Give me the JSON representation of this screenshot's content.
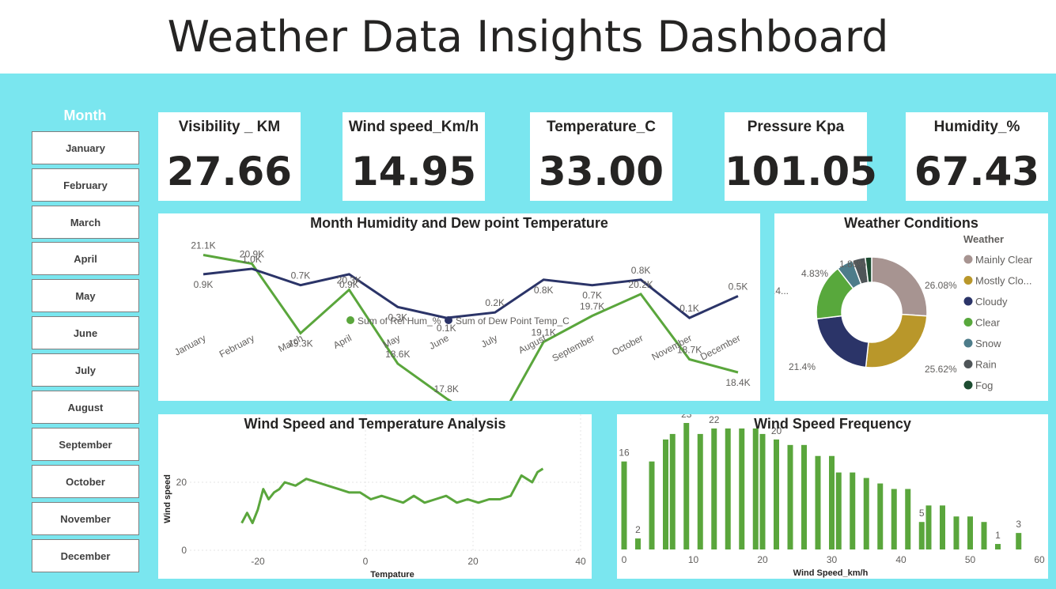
{
  "title": "Weather Data Insights Dashboard",
  "slicer": {
    "title": "Month",
    "items": [
      "January",
      "February",
      "March",
      "April",
      "May",
      "June",
      "July",
      "August",
      "September",
      "October",
      "November",
      "December"
    ]
  },
  "kpis": [
    {
      "label": "Visibility _ KM",
      "value": "27.66"
    },
    {
      "label": "Wind speed_Km/h",
      "value": "14.95"
    },
    {
      "label": "Temperature_C",
      "value": "33.00"
    },
    {
      "label": "Pressure Kpa",
      "value": "101.05"
    },
    {
      "label": "Humidity_%",
      "value": "67.43"
    }
  ],
  "colors": {
    "background": "#7ae6ef",
    "green": "#5aa63c",
    "navy": "#2b3468"
  },
  "chart_data": [
    {
      "type": "line",
      "title": "Month Humidity and Dew point Temperature",
      "categories": [
        "January",
        "February",
        "March",
        "April",
        "May",
        "June",
        "July",
        "August",
        "September",
        "October",
        "November",
        "December"
      ],
      "series": [
        {
          "name": "Sum of Rel Hum_%",
          "color": "#5aa63c",
          "values": [
            21.1,
            20.9,
            19.3,
            20.3,
            18.6,
            17.8,
            17.1,
            19.1,
            19.7,
            20.2,
            18.7,
            18.4
          ],
          "labels": [
            "21.1K",
            "20.9K",
            "19.3K",
            "20.3K",
            "18.6K",
            "17.8K",
            "17.1K",
            "19.1K",
            "19.7K",
            "20.2K",
            "18.7K",
            "18.4K"
          ]
        },
        {
          "name": "Sum of Dew Point Temp_C",
          "color": "#2b3468",
          "values": [
            0.9,
            1.0,
            0.7,
            0.9,
            0.3,
            0.1,
            0.2,
            0.8,
            0.7,
            0.8,
            0.1,
            0.5
          ],
          "labels": [
            "0.9K",
            "1.0K",
            "0.7K",
            "0.9K",
            "0.3K",
            "0.1K",
            "0.2K",
            "0.8K",
            "0.7K",
            "0.8K",
            "0.1K",
            "0.5K"
          ]
        }
      ],
      "legend_position": "bottom-center"
    },
    {
      "type": "pie",
      "title": "Weather Conditions",
      "legend_title": "Weather",
      "legend_position": "right",
      "slices": [
        {
          "name": "Mainly Clear",
          "legend_label": "Mainly Clear",
          "value": 26.08,
          "label": "26.08%",
          "color": "#a79491"
        },
        {
          "name": "Mostly Cloudy",
          "legend_label": "Mostly Clo...",
          "value": 25.62,
          "label": "25.62%",
          "color": "#b9972a"
        },
        {
          "name": "Cloudy",
          "legend_label": "Cloudy",
          "value": 21.4,
          "label": "21.4%",
          "color": "#2b3468"
        },
        {
          "name": "Clear",
          "legend_label": "Clear",
          "value": 16.4,
          "label": "16.4...",
          "color": "#58a83c"
        },
        {
          "name": "Snow",
          "legend_label": "Snow",
          "value": 4.83,
          "label": "4.83%",
          "color": "#4d7c8a"
        },
        {
          "name": "Rain",
          "legend_label": "Rain",
          "value": 3.81,
          "label": "",
          "color": "#4f5558"
        },
        {
          "name": "Fog",
          "legend_label": "Fog",
          "value": 1.86,
          "label": "1.86%",
          "color": "#1d4c31"
        }
      ]
    },
    {
      "type": "line",
      "title": "Wind Speed and Temperature Analysis",
      "xlabel": "Tempature",
      "ylabel": "Wind speed",
      "xlim": [
        -24,
        40
      ],
      "ylim": [
        0,
        33
      ],
      "xticks": [
        "-20",
        "0",
        "20",
        "40"
      ],
      "yticks": [
        "0",
        "20"
      ],
      "series": [
        {
          "name": "",
          "color": "#5aa63c",
          "x": [
            -23,
            -22,
            -21,
            -20,
            -19,
            -18,
            -17,
            -16,
            -15,
            -13,
            -11,
            -9,
            -7,
            -5,
            -3,
            -1,
            1,
            3,
            5,
            7,
            9,
            11,
            13,
            15,
            17,
            19,
            21,
            23,
            25,
            27,
            29,
            30,
            31,
            32,
            33
          ],
          "y": [
            8,
            11,
            8,
            12,
            18,
            15,
            17,
            18,
            20,
            19,
            21,
            20,
            19,
            18,
            17,
            17,
            15,
            16,
            15,
            14,
            16,
            14,
            15,
            16,
            14,
            15,
            14,
            15,
            15,
            16,
            22,
            21,
            20,
            23,
            24
          ]
        }
      ]
    },
    {
      "type": "bar",
      "title": "Wind Speed Frequency",
      "xlabel": "Wind Speed_km/h",
      "xlim": [
        0,
        61
      ],
      "ylim": [
        0,
        25
      ],
      "xticks": [
        "0",
        "10",
        "20",
        "30",
        "40",
        "50",
        "60"
      ],
      "x": [
        0,
        2,
        4,
        6,
        7,
        9,
        11,
        13,
        15,
        17,
        19,
        20,
        22,
        24,
        26,
        28,
        30,
        31,
        33,
        35,
        37,
        39,
        41,
        43,
        44,
        46,
        48,
        50,
        52,
        54,
        57
      ],
      "values": [
        16,
        2,
        16,
        20,
        21,
        23,
        21,
        22,
        22,
        22,
        22,
        21,
        20,
        19,
        19,
        17,
        17,
        14,
        14,
        13,
        12,
        11,
        11,
        5,
        8,
        8,
        6,
        6,
        5,
        1,
        3
      ],
      "data_labels": {
        "0": "16",
        "2": "2",
        "9": "23",
        "13": "22",
        "22": "20",
        "43": "5",
        "54": "1",
        "57": "3"
      }
    }
  ]
}
